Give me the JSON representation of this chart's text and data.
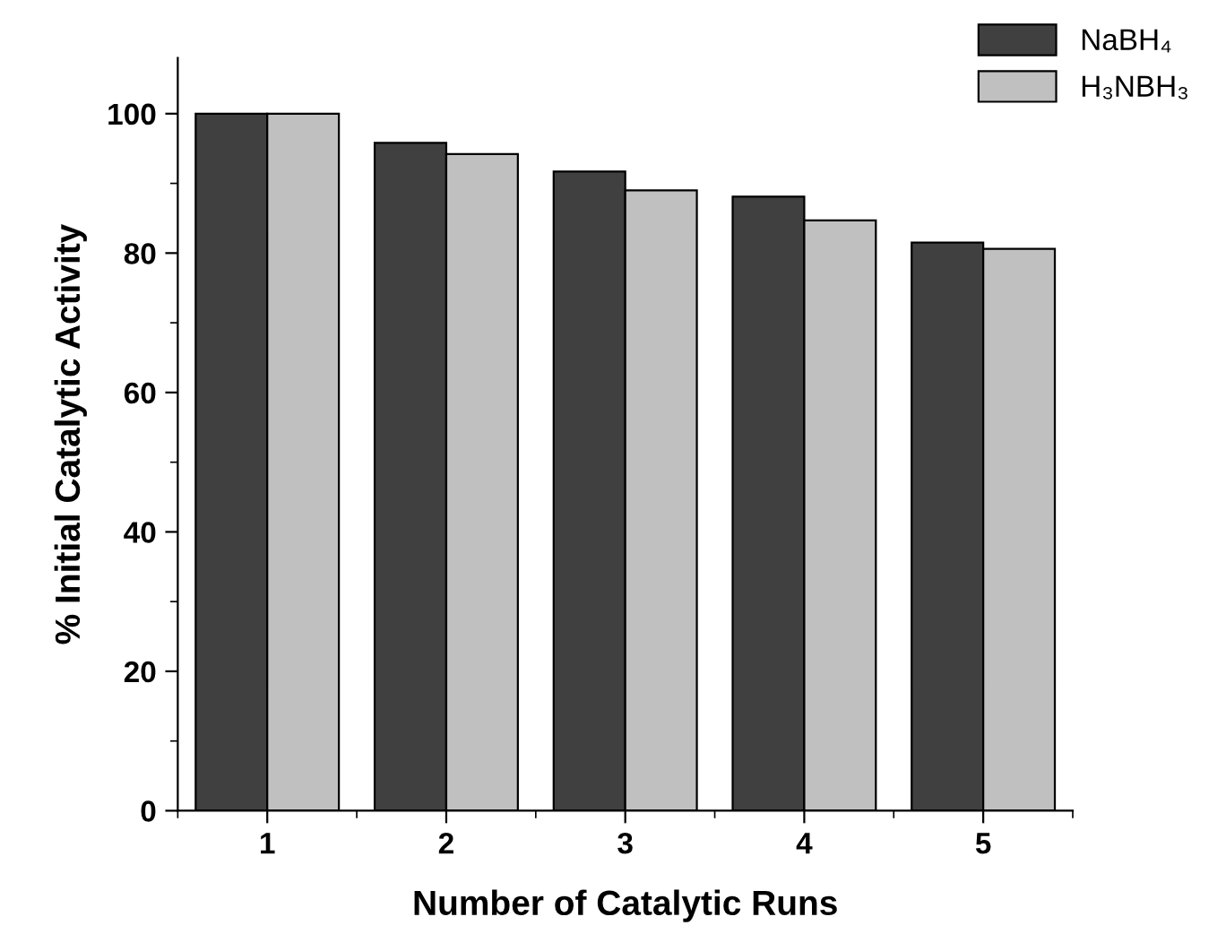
{
  "chart_data": {
    "type": "bar",
    "xlabel": "Number of Catalytic Runs",
    "ylabel": "% Initial Catalytic Activity",
    "categories": [
      "1",
      "2",
      "3",
      "4",
      "5"
    ],
    "series": [
      {
        "name": "NaBH₄",
        "color": "#404040",
        "values": [
          100,
          95.8,
          91.7,
          88.1,
          81.5
        ]
      },
      {
        "name": "H₃NBH₃",
        "color": "#c0c0c0",
        "values": [
          100,
          94.2,
          89.0,
          84.7,
          80.6
        ]
      }
    ],
    "ylim": [
      0,
      108
    ],
    "yticks": [
      0,
      20,
      40,
      60,
      80,
      100
    ],
    "grid": false,
    "legend": "top right"
  }
}
